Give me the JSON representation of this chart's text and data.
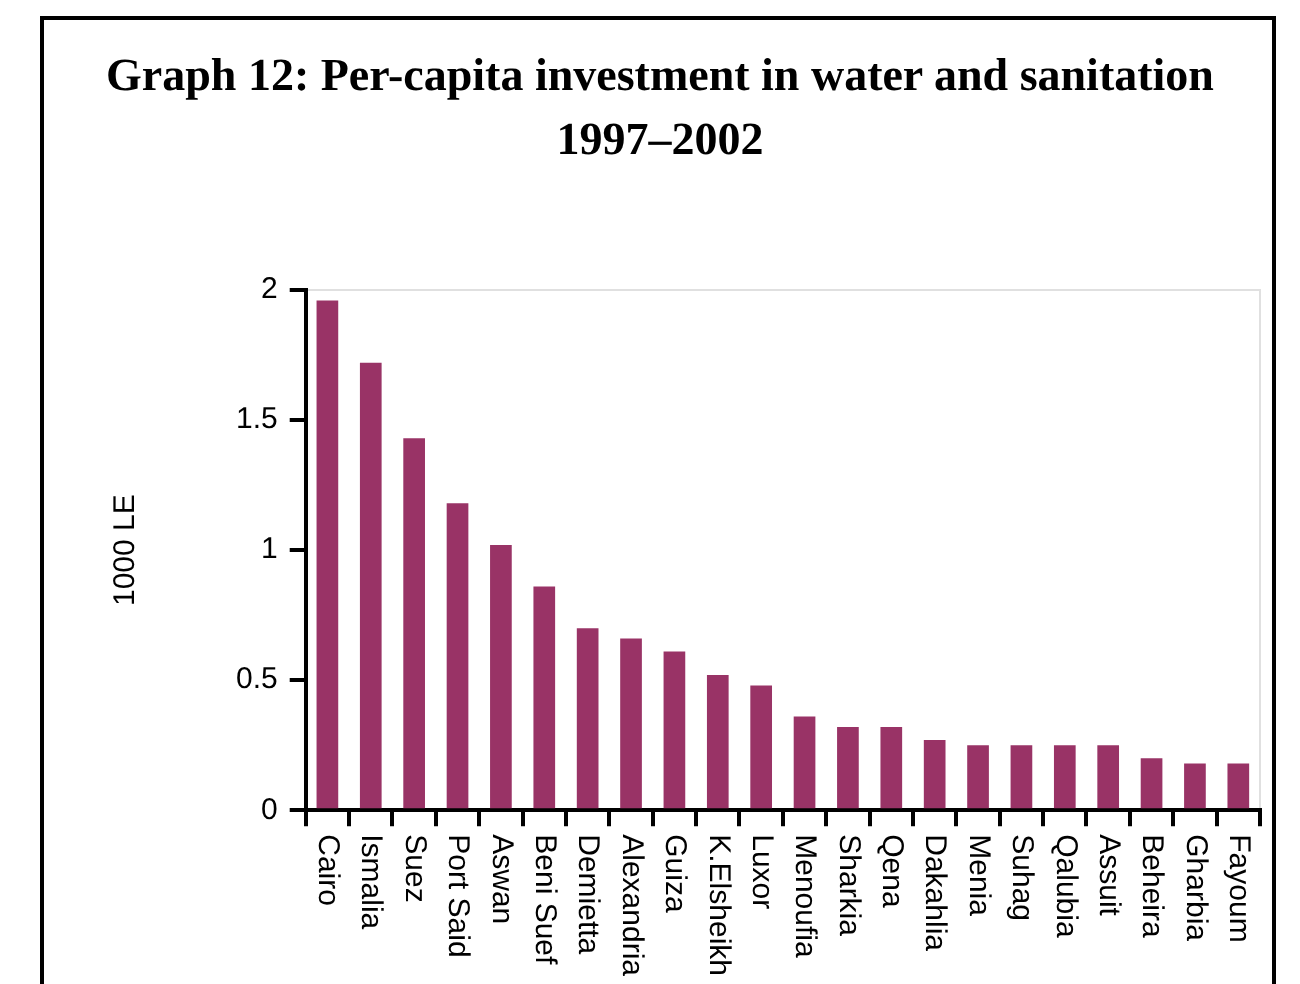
{
  "chart_data": {
    "type": "bar",
    "title": "Graph 12: Per-capita investment in water and sanitation 1997–2002",
    "ylabel": "1000 LE",
    "categories": [
      "Cairo",
      "Ismalia",
      "Suez",
      "Port Said",
      "Aswan",
      "Beni Suef",
      "Demietta",
      "Alexandria",
      "Guiza",
      "K.Elsheikh",
      "Luxor",
      "Menoufia",
      "Sharkia",
      "Qena",
      "Dakahlia",
      "Menia",
      "Suhag",
      "Qalubia",
      "Assuit",
      "Beheira",
      "Gharbia",
      "Fayoum"
    ],
    "values": [
      1.96,
      1.72,
      1.43,
      1.18,
      1.02,
      0.86,
      0.7,
      0.66,
      0.61,
      0.52,
      0.48,
      0.36,
      0.32,
      0.32,
      0.27,
      0.25,
      0.25,
      0.25,
      0.25,
      0.2,
      0.18,
      0.18
    ],
    "color": "#993366",
    "ylim": [
      0,
      2
    ],
    "yticks": [
      0,
      0.5,
      1,
      1.5,
      2
    ],
    "grid": false,
    "legend": false
  }
}
